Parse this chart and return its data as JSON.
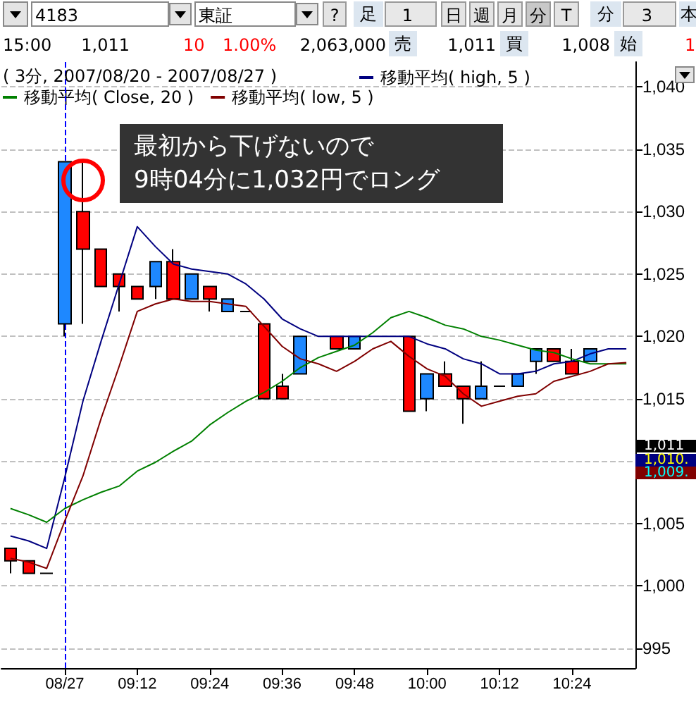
{
  "chart_data": {
    "type": "candlestick",
    "title": "( 3分, 2007/08/20 - 2007/08/27 )",
    "categories": [
      null,
      null,
      null,
      "08/27",
      null,
      null,
      null,
      "09:12",
      null,
      null,
      null,
      "09:24",
      null,
      null,
      null,
      "09:36",
      null,
      null,
      null,
      "09:48",
      null,
      null,
      null,
      "10:00",
      null,
      null,
      null,
      "10:12",
      null,
      null,
      null,
      "10:24",
      null,
      null,
      null
    ],
    "ohlc": [
      [
        1003,
        1003,
        1001,
        1002
      ],
      [
        1002,
        1002,
        1001,
        1001
      ],
      [
        1001,
        1001,
        1001,
        1001
      ],
      [
        1021,
        1034,
        1020,
        1034
      ],
      [
        1030,
        1034,
        1021,
        1027
      ],
      [
        1027,
        1027,
        1024,
        1024
      ],
      [
        1025,
        1025,
        1022,
        1024
      ],
      [
        1024,
        1024,
        1023,
        1023
      ],
      [
        1024,
        1026,
        1023,
        1026
      ],
      [
        1026,
        1027,
        1023,
        1023
      ],
      [
        1023,
        1025,
        1023,
        1025
      ],
      [
        1024,
        1024,
        1022,
        1023
      ],
      [
        1022,
        1023,
        1022,
        1023
      ],
      [
        1022,
        1022,
        1022,
        1022
      ],
      [
        1021,
        1021,
        1015,
        1015
      ],
      [
        1016,
        1017,
        1015,
        1015
      ],
      [
        1017,
        1020,
        1017,
        1020
      ],
      null,
      [
        1020,
        1020,
        1019,
        1019
      ],
      [
        1019,
        1020,
        1019,
        1020
      ],
      null,
      null,
      [
        1020,
        1020,
        1014,
        1014
      ],
      [
        1015,
        1017,
        1014,
        1017
      ],
      [
        1017,
        1018,
        1016,
        1016
      ],
      [
        1016,
        1016,
        1013,
        1015
      ],
      [
        1015,
        1018,
        1015,
        1016
      ],
      [
        1016,
        1016,
        1016,
        1016
      ],
      [
        1016,
        1017,
        1016,
        1017
      ],
      [
        1018,
        1019,
        1017,
        1019
      ],
      [
        1019,
        1019,
        1018,
        1018
      ],
      [
        1018,
        1019,
        1017,
        1017
      ],
      [
        1018,
        1019,
        1018,
        1019
      ],
      null,
      null
    ],
    "colors": [
      "#ff0000",
      "#ff0000",
      "#000000",
      "#1e88ff",
      "#ff0000",
      "#ff0000",
      "#ff0000",
      "#ff0000",
      "#1e88ff",
      "#ff0000",
      "#1e88ff",
      "#ff0000",
      "#1e88ff",
      "#000000",
      "#ff0000",
      "#ff0000",
      "#1e88ff",
      null,
      "#ff0000",
      "#1e88ff",
      null,
      null,
      "#ff0000",
      "#1e88ff",
      "#ff0000",
      "#ff0000",
      "#1e88ff",
      "#000000",
      "#1e88ff",
      "#1e88ff",
      "#ff0000",
      "#ff0000",
      "#1e88ff",
      null,
      null
    ],
    "series": [
      {
        "name": "移動平均( high, 5 )",
        "type": "line",
        "color": "#000080",
        "values": [
          1004.0,
          1003.6,
          1003.0,
          1008.7,
          1014.8,
          1019.6,
          1024.2,
          1028.8,
          1027.2,
          1025.8,
          1025.4,
          1025.2,
          1025.0,
          1024.2,
          1023.0,
          1021.4,
          1020.6,
          1020.0,
          1020.0,
          1020.0,
          1020.0,
          1020.0,
          1020.0,
          1019.4,
          1019.0,
          1018.2,
          1017.8,
          1017.0,
          1017.0,
          1017.2,
          1017.8,
          1018.0,
          1018.6,
          1019.0,
          1019.0
        ]
      },
      {
        "name": "移動平均( Close, 20 )",
        "type": "line",
        "color": "#008000",
        "values": [
          1006.2,
          1005.7,
          1005.1,
          1006.2,
          1006.9,
          1007.5,
          1008.0,
          1009.2,
          1009.9,
          1010.8,
          1011.6,
          1012.9,
          1013.9,
          1014.8,
          1015.5,
          1016.4,
          1017.5,
          1018.3,
          1018.8,
          1019.3,
          1020.3,
          1021.5,
          1022.0,
          1021.5,
          1020.9,
          1020.6,
          1020.0,
          1019.7,
          1019.3,
          1018.9,
          1018.7,
          1018.2,
          1017.8,
          1017.8,
          1017.8
        ]
      },
      {
        "name": "移動平均( low, 5 )",
        "type": "line",
        "color": "#800000",
        "values": [
          1002.2,
          1001.9,
          1001.4,
          1005.2,
          1008.8,
          1013.4,
          1017.6,
          1022.0,
          1022.6,
          1023.0,
          1022.8,
          1022.8,
          1022.6,
          1022.4,
          1020.8,
          1019.2,
          1018.2,
          1017.8,
          1017.2,
          1018.0,
          1019.0,
          1019.6,
          1018.4,
          1017.4,
          1016.8,
          1015.4,
          1014.4,
          1014.8,
          1015.2,
          1015.4,
          1016.4,
          1016.8,
          1017.2,
          1017.8,
          1017.9
        ]
      }
    ],
    "ylim": [
      993.4,
      1042
    ],
    "yticks": [
      995,
      {
        "value": 1000,
        "label": "1,000"
      },
      {
        "value": 1005,
        "label": "1,005"
      },
      {
        "value": 1010,
        "label": null
      },
      {
        "value": 1015,
        "label": "1,015"
      },
      {
        "value": 1020,
        "label": "1,020"
      },
      {
        "value": 1025,
        "label": "1,025"
      },
      {
        "value": 1030,
        "label": "1,030"
      },
      {
        "value": 1035,
        "label": "1,035"
      },
      {
        "value": 1040,
        "label": "1,040"
      }
    ],
    "grid": "y",
    "legend": "top left",
    "marker": "none",
    "line_style": "solid",
    "ref_lines": [
      {
        "axis": "x",
        "value": "08/27",
        "color": "#0000ff",
        "line_style": "dashed"
      }
    ],
    "annotations": [
      "最初から下げないので\n9時04分に1,032円でロング",
      "1,011",
      "1,010.",
      "1,009.",
      "4183",
      "東証",
      "?",
      "足",
      "1",
      "日",
      "週",
      "月",
      "分",
      "T",
      "分",
      "3",
      "本",
      "15:00",
      "1,011",
      "10",
      "1.00%",
      "2,063,000",
      "売",
      "1,011",
      "買",
      "1,008",
      "始",
      "1"
    ]
  }
}
